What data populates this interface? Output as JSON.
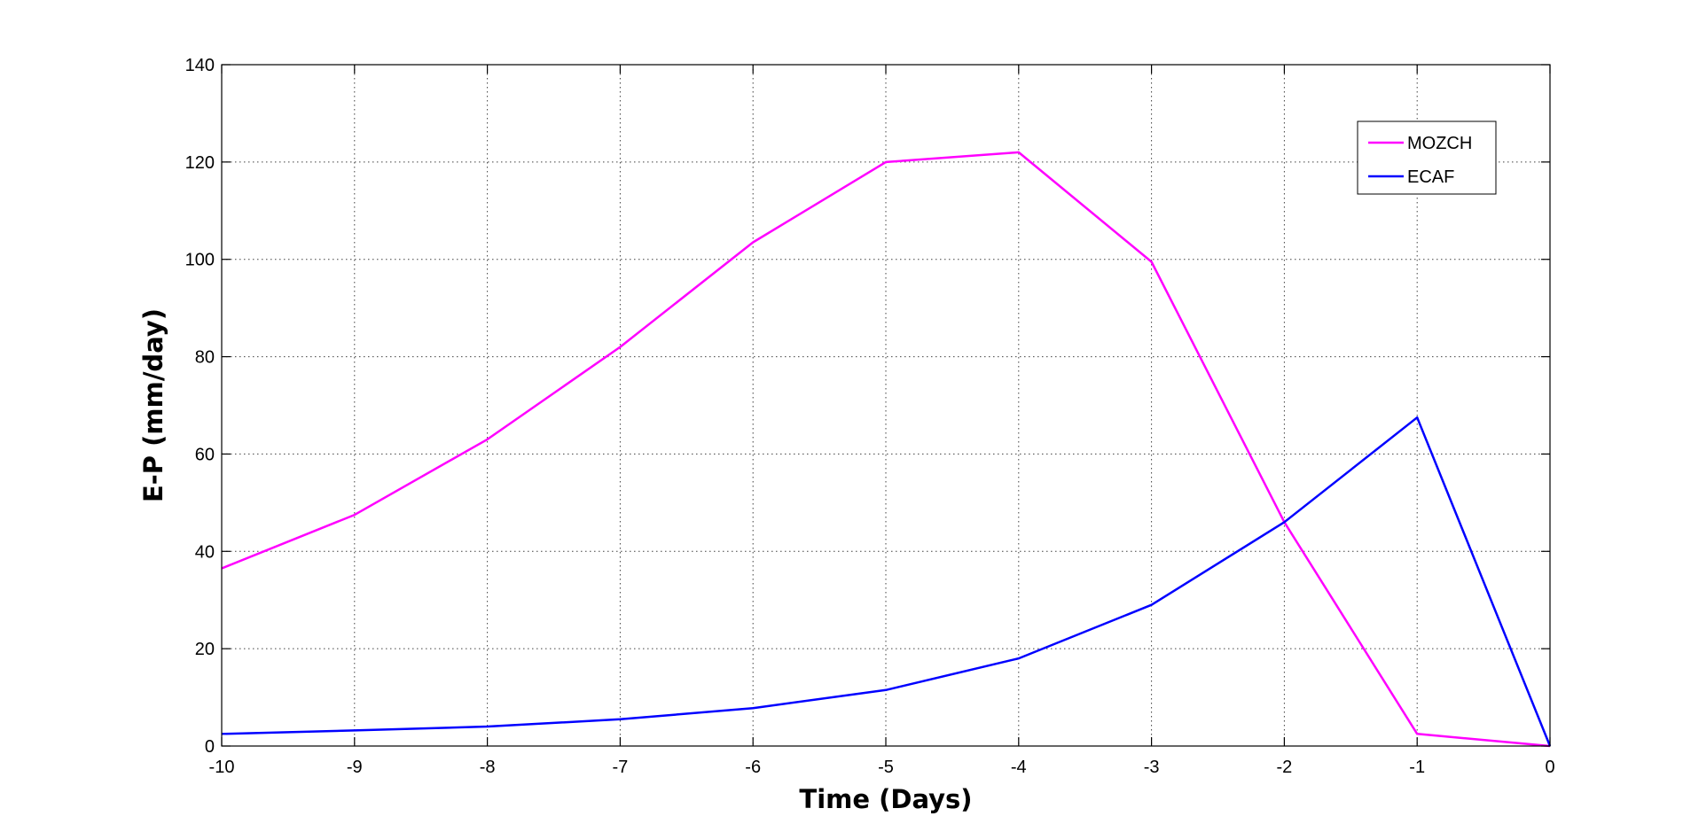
{
  "chart_data": {
    "type": "line",
    "title": "",
    "xlabel": "Time (Days)",
    "ylabel": "E-P (mm/day)",
    "xlim": [
      -10,
      0
    ],
    "ylim": [
      0,
      140
    ],
    "x_ticks": [
      "-10",
      "-9",
      "-8",
      "-7",
      "-6",
      "-5",
      "-4",
      "-3",
      "-2",
      "-1",
      "0"
    ],
    "y_ticks": [
      "0",
      "20",
      "40",
      "60",
      "80",
      "100",
      "120",
      "140"
    ],
    "grid": true,
    "legend_position": "top-right",
    "x": [
      -10,
      -9,
      -8,
      -7,
      -6,
      -5,
      -4,
      -3,
      -2,
      -1,
      0
    ],
    "series": [
      {
        "name": "MOZCH",
        "color": "#ff00ff",
        "values": [
          36.5,
          47.5,
          63,
          82,
          103.5,
          120,
          122,
          99.5,
          46,
          2.5,
          0
        ]
      },
      {
        "name": "ECAF",
        "color": "#0000ff",
        "values": [
          2.5,
          3.2,
          4,
          5.5,
          7.8,
          11.5,
          18,
          29,
          46,
          67.5,
          0
        ]
      }
    ]
  }
}
